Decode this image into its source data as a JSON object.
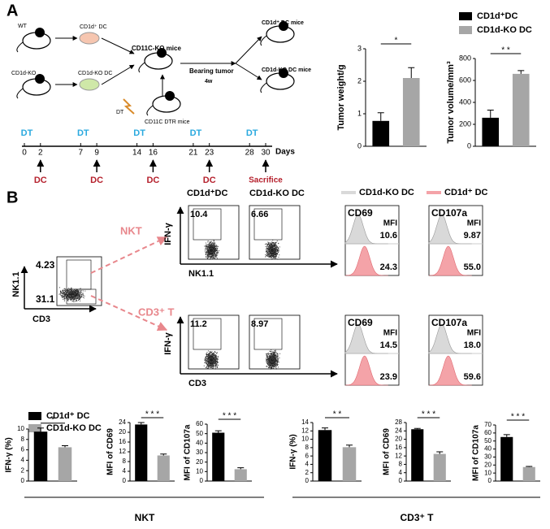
{
  "panel_labels": [
    "A",
    "B"
  ],
  "schematic": {
    "wt": "WT",
    "ko": "CD1d-KO",
    "dc_wt": "CD1d⁺ DC",
    "dc_ko": "CD1d-KO DC",
    "recipient": "CD11C-KO mice",
    "dt": "DT",
    "dtr": "CD11C DTR mice",
    "tumor": "Bearing tumor",
    "duration": "4w",
    "out_wt": "CD1d⁺ DC mice",
    "out_ko": "CD1d-KO DC mice"
  },
  "timeline": {
    "days": [
      0,
      2,
      7,
      9,
      14,
      16,
      21,
      23,
      28,
      30
    ],
    "unit": "Days",
    "dt_label": "DT",
    "dt_days": [
      0,
      7,
      14,
      21,
      28
    ],
    "dc_label": "DC",
    "dc_days": [
      2,
      9,
      16,
      23
    ],
    "end_label": "Sacrifice",
    "end_day": 30
  },
  "legends": {
    "tumor": [
      "CD1d⁺DC",
      "CD1d-KO DC"
    ],
    "bars": [
      "CD1d⁺ DC",
      "CD1d-KO DC"
    ],
    "histogram": [
      "CD1d-KO DC",
      "CD1d⁺ DC"
    ]
  },
  "flow": {
    "x_label": "CD3",
    "y_label": "NK1.1",
    "gates": [
      "4.23",
      "31.1"
    ],
    "populations": [
      "NKT",
      "CD3⁺ T"
    ],
    "columns": [
      "CD1d⁺DC",
      "CD1d-KO DC"
    ],
    "rows": [
      {
        "y_label": "IFN-γ",
        "x_label": "NK1.1",
        "gates": [
          "10.4",
          "6.66"
        ]
      },
      {
        "y_label": "IFN-γ",
        "x_label": "CD3",
        "gates": [
          "11.2",
          "8.97"
        ]
      }
    ]
  },
  "histograms": {
    "mfi_label": "MFI",
    "colors": [
      "#d9d9d9",
      "#f4a3a8"
    ],
    "panels": [
      {
        "marker": "CD69",
        "values": [
          "10.6",
          "24.3"
        ]
      },
      {
        "marker": "CD107a",
        "values": [
          "9.87",
          "55.0"
        ]
      },
      {
        "marker": "CD69",
        "values": [
          "14.5",
          "23.9"
        ]
      },
      {
        "marker": "CD107a",
        "values": [
          "18.0",
          "59.6"
        ]
      }
    ]
  },
  "chart_data": [
    {
      "type": "bar",
      "ylabel": "Tumor weight/g",
      "values": [
        0.78,
        2.1
      ],
      "errors": [
        0.25,
        0.32
      ],
      "colors": [
        "#000000",
        "#a6a6a6"
      ],
      "ylim": [
        0,
        3
      ],
      "yticks": [
        0,
        1,
        2,
        3
      ],
      "significance": "*"
    },
    {
      "type": "bar",
      "ylabel": "Tumor volume/mm³",
      "values": [
        260,
        660
      ],
      "errors": [
        70,
        30
      ],
      "colors": [
        "#000000",
        "#a6a6a6"
      ],
      "ylim": [
        0,
        800
      ],
      "yticks": [
        0,
        200,
        400,
        600,
        800
      ],
      "significance": "* *"
    },
    {
      "type": "bar",
      "ylabel": "IFN-γ (%)",
      "values": [
        9.5,
        6.5
      ],
      "errors": [
        0.7,
        0.3
      ],
      "colors": [
        "#000000",
        "#a6a6a6"
      ],
      "ylim": [
        0,
        10
      ],
      "yticks": [
        0,
        2,
        4,
        6,
        8,
        10
      ],
      "significance": "*"
    },
    {
      "type": "bar",
      "ylabel": "MFI of CD69",
      "values": [
        23.2,
        10.5
      ],
      "errors": [
        0.8,
        0.6
      ],
      "colors": [
        "#000000",
        "#a6a6a6"
      ],
      "ylim": [
        0,
        24
      ],
      "yticks": [
        0,
        4,
        8,
        12,
        16,
        20,
        24
      ],
      "significance": "* * *"
    },
    {
      "type": "bar",
      "ylabel": "MFI of CD107a",
      "values": [
        51,
        12.5
      ],
      "errors": [
        2,
        1.5
      ],
      "colors": [
        "#000000",
        "#a6a6a6"
      ],
      "ylim": [
        0,
        60
      ],
      "yticks": [
        0,
        10,
        20,
        30,
        40,
        50,
        60
      ],
      "significance": "* * *"
    },
    {
      "type": "bar",
      "ylabel": "IFN-γ (%)",
      "values": [
        12.2,
        8.1
      ],
      "errors": [
        0.5,
        0.5
      ],
      "colors": [
        "#000000",
        "#a6a6a6"
      ],
      "ylim": [
        0,
        14
      ],
      "yticks": [
        0,
        2,
        4,
        6,
        8,
        10,
        12,
        14
      ],
      "significance": "* *"
    },
    {
      "type": "bar",
      "ylabel": "MFI of CD69",
      "values": [
        24.8,
        13
      ],
      "errors": [
        0.4,
        1
      ],
      "colors": [
        "#000000",
        "#a6a6a6"
      ],
      "ylim": [
        0,
        28
      ],
      "yticks": [
        0,
        4,
        8,
        12,
        16,
        20,
        24,
        28
      ],
      "significance": "* * *"
    },
    {
      "type": "bar",
      "ylabel": "MFI of CD107a",
      "values": [
        55,
        17.5
      ],
      "errors": [
        3,
        0.8
      ],
      "colors": [
        "#000000",
        "#a6a6a6"
      ],
      "ylim": [
        0,
        70
      ],
      "yticks": [
        0,
        10,
        20,
        30,
        40,
        50,
        60,
        70
      ],
      "significance": "* * *"
    }
  ],
  "groups": [
    "NKT",
    "CD3⁺ T"
  ]
}
